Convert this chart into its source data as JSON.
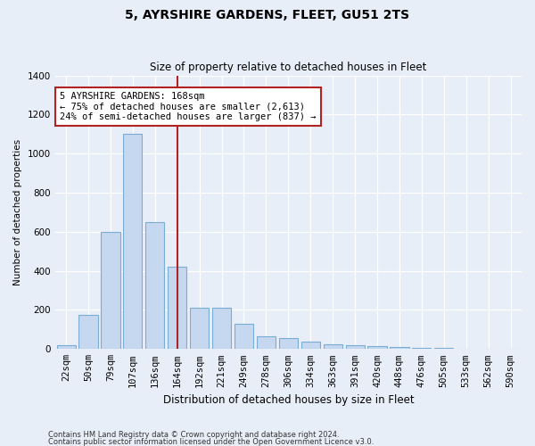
{
  "title": "5, AYRSHIRE GARDENS, FLEET, GU51 2TS",
  "subtitle": "Size of property relative to detached houses in Fleet",
  "xlabel": "Distribution of detached houses by size in Fleet",
  "ylabel": "Number of detached properties",
  "footer_line1": "Contains HM Land Registry data © Crown copyright and database right 2024.",
  "footer_line2": "Contains public sector information licensed under the Open Government Licence v3.0.",
  "bar_color": "#c5d8ef",
  "bar_edge_color": "#7aadd4",
  "fig_bg_color": "#e8eef8",
  "axes_bg_color": "#e8eef8",
  "grid_color": "#ffffff",
  "vline_color": "#b22222",
  "vline_x_idx": 5,
  "annotation_text": "5 AYRSHIRE GARDENS: 168sqm\n← 75% of detached houses are smaller (2,613)\n24% of semi-detached houses are larger (837) →",
  "ann_box_edge_color": "#b22222",
  "categories": [
    "22sqm",
    "50sqm",
    "79sqm",
    "107sqm",
    "136sqm",
    "164sqm",
    "192sqm",
    "221sqm",
    "249sqm",
    "278sqm",
    "306sqm",
    "334sqm",
    "363sqm",
    "391sqm",
    "420sqm",
    "448sqm",
    "476sqm",
    "505sqm",
    "533sqm",
    "562sqm",
    "590sqm"
  ],
  "values": [
    20,
    175,
    600,
    1100,
    650,
    420,
    210,
    210,
    130,
    65,
    55,
    40,
    25,
    20,
    15,
    10,
    8,
    4,
    0,
    0,
    0
  ],
  "ylim": [
    0,
    1400
  ],
  "yticks": [
    0,
    200,
    400,
    600,
    800,
    1000,
    1200,
    1400
  ]
}
